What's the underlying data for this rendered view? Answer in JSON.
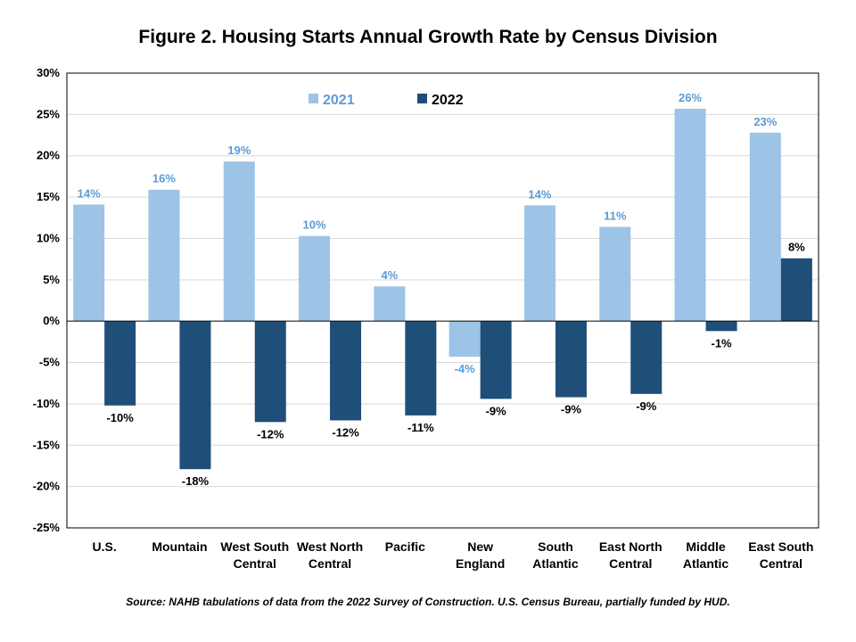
{
  "chart_data": {
    "type": "bar",
    "title": "Figure 2. Housing Starts Annual Growth Rate by Census Division",
    "categories": [
      [
        "U.S."
      ],
      [
        "Mountain"
      ],
      [
        "West South",
        "Central"
      ],
      [
        "West North",
        "Central"
      ],
      [
        "Pacific"
      ],
      [
        "New",
        "England"
      ],
      [
        "South",
        "Atlantic"
      ],
      [
        "East North",
        "Central"
      ],
      [
        "Middle",
        "Atlantic"
      ],
      [
        "East South",
        "Central"
      ]
    ],
    "series": [
      {
        "name": "2021",
        "color": "#9DC3E6",
        "label_color": "#5B9BD5",
        "values": [
          14.1,
          15.9,
          19.3,
          10.3,
          4.2,
          -4.3,
          14.0,
          11.4,
          25.7,
          22.8
        ],
        "labels": [
          "14%",
          "16%",
          "19%",
          "10%",
          "4%",
          "-4%",
          "14%",
          "11%",
          "26%",
          "23%"
        ]
      },
      {
        "name": "2022",
        "color": "#1F4E79",
        "label_color": "#000000",
        "values": [
          -10.2,
          -17.9,
          -12.2,
          -12.0,
          -11.4,
          -9.4,
          -9.2,
          -8.8,
          -1.2,
          7.6
        ],
        "labels": [
          "-10%",
          "-18%",
          "-12%",
          "-12%",
          "-11%",
          "-9%",
          "-9%",
          "-9%",
          "-1%",
          "8%"
        ]
      }
    ],
    "ylim": [
      -25,
      30
    ],
    "yticks": [
      30,
      25,
      20,
      15,
      10,
      5,
      0,
      -5,
      -10,
      -15,
      -20,
      -25
    ],
    "ytick_labels": [
      "30%",
      "25%",
      "20%",
      "15%",
      "10%",
      "5%",
      "0%",
      "-5%",
      "-10%",
      "-15%",
      "-20%",
      "-25%"
    ],
    "grid": true,
    "legend_position": "top-center"
  },
  "source": "Source: NAHB tabulations of data from the 2022 Survey of Construction. U.S. Census Bureau, partially funded by HUD."
}
